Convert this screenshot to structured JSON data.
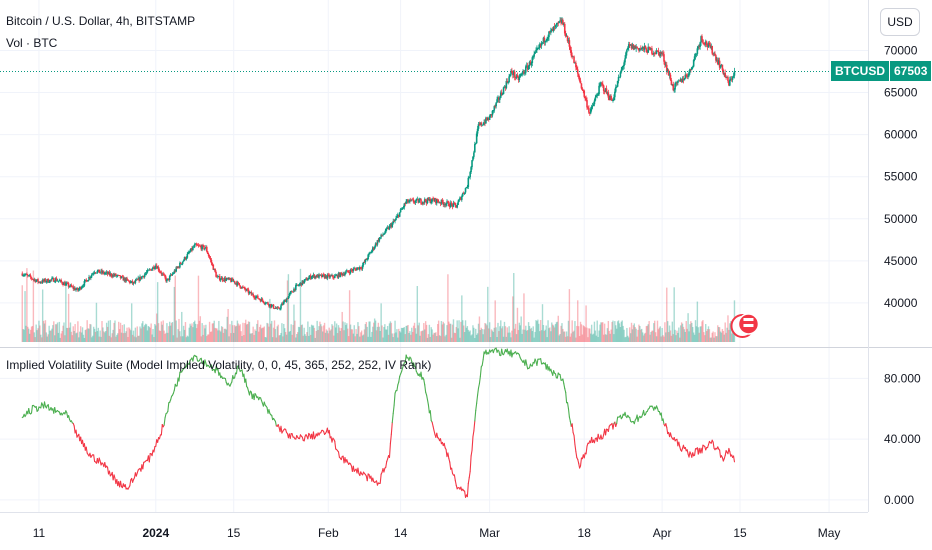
{
  "header": {
    "title": "Bitcoin / U.S. Dollar, 4h, BITSTAMP",
    "volume_label": "Vol · BTC",
    "currency_button": "USD"
  },
  "price_tag": {
    "symbol": "BTCUSD",
    "value": "67503"
  },
  "indicator": {
    "title": "Implied Volatility Suite (Model Implied Volatility, 0, 0, 45, 365, 252, 252, IV Rank)"
  },
  "colors": {
    "up": "#089981",
    "down": "#f23645",
    "iv_high": "#4caf50",
    "iv_low": "#f23645",
    "grid": "#f0f3fa"
  },
  "chart_data": [
    {
      "type": "candlestick",
      "title": "Bitcoin / U.S. Dollar, 4h, BITSTAMP",
      "ylim": [
        35000,
        76000
      ],
      "y_ticks": [
        40000,
        45000,
        50000,
        55000,
        60000,
        65000,
        70000
      ],
      "y_tick_labels": [
        "40000",
        "45000",
        "50000",
        "55000",
        "60000",
        "65000",
        "70000"
      ],
      "last_price": 67503,
      "price_anchors": [
        {
          "date": "2023-12-08",
          "close": 43500
        },
        {
          "date": "2023-12-11",
          "close": 42500
        },
        {
          "date": "2023-12-14",
          "close": 42800
        },
        {
          "date": "2023-12-18",
          "close": 41500
        },
        {
          "date": "2023-12-21",
          "close": 43800
        },
        {
          "date": "2023-12-25",
          "close": 43200
        },
        {
          "date": "2023-12-28",
          "close": 42300
        },
        {
          "date": "2024-01-01",
          "close": 44500
        },
        {
          "date": "2024-01-03",
          "close": 42600
        },
        {
          "date": "2024-01-08",
          "close": 46800
        },
        {
          "date": "2024-01-10",
          "close": 46500
        },
        {
          "date": "2024-01-12",
          "close": 43000
        },
        {
          "date": "2024-01-15",
          "close": 42600
        },
        {
          "date": "2024-01-18",
          "close": 41100
        },
        {
          "date": "2024-01-23",
          "close": 39200
        },
        {
          "date": "2024-01-26",
          "close": 41800
        },
        {
          "date": "2024-01-29",
          "close": 43200
        },
        {
          "date": "2024-02-02",
          "close": 43100
        },
        {
          "date": "2024-02-07",
          "close": 44300
        },
        {
          "date": "2024-02-10",
          "close": 47500
        },
        {
          "date": "2024-02-13",
          "close": 49800
        },
        {
          "date": "2024-02-15",
          "close": 52000
        },
        {
          "date": "2024-02-20",
          "close": 52200
        },
        {
          "date": "2024-02-24",
          "close": 51500
        },
        {
          "date": "2024-02-26",
          "close": 54000
        },
        {
          "date": "2024-02-28",
          "close": 61000
        },
        {
          "date": "2024-03-01",
          "close": 62000
        },
        {
          "date": "2024-03-05",
          "close": 67500
        },
        {
          "date": "2024-03-06",
          "close": 66500
        },
        {
          "date": "2024-03-08",
          "close": 68200
        },
        {
          "date": "2024-03-11",
          "close": 71500
        },
        {
          "date": "2024-03-14",
          "close": 73500
        },
        {
          "date": "2024-03-16",
          "close": 69000
        },
        {
          "date": "2024-03-19",
          "close": 62500
        },
        {
          "date": "2024-03-21",
          "close": 66000
        },
        {
          "date": "2024-03-23",
          "close": 64000
        },
        {
          "date": "2024-03-26",
          "close": 70500
        },
        {
          "date": "2024-03-30",
          "close": 70000
        },
        {
          "date": "2024-04-01",
          "close": 69600
        },
        {
          "date": "2024-04-03",
          "close": 65500
        },
        {
          "date": "2024-04-06",
          "close": 67500
        },
        {
          "date": "2024-04-08",
          "close": 71500
        },
        {
          "date": "2024-04-10",
          "close": 70000
        },
        {
          "date": "2024-04-12",
          "close": 67500
        },
        {
          "date": "2024-04-13",
          "close": 66000
        },
        {
          "date": "2024-04-14",
          "close": 67503
        }
      ]
    },
    {
      "type": "volume",
      "title": "Vol · BTC"
    },
    {
      "type": "line",
      "title": "Implied Volatility Suite (Model Implied Volatility, 0, 0, 45, 365, 252, 252, IV Rank)",
      "ylim": [
        -8,
        100
      ],
      "y_ticks": [
        0,
        40,
        80
      ],
      "y_tick_labels": [
        "0.000",
        "40.000",
        "80.000"
      ],
      "threshold": 50,
      "points": [
        {
          "date": "2023-12-08",
          "value": 55
        },
        {
          "date": "2023-12-10",
          "value": 60
        },
        {
          "date": "2023-12-12",
          "value": 62
        },
        {
          "date": "2023-12-14",
          "value": 58
        },
        {
          "date": "2023-12-16",
          "value": 56
        },
        {
          "date": "2023-12-18",
          "value": 42
        },
        {
          "date": "2023-12-20",
          "value": 30
        },
        {
          "date": "2023-12-23",
          "value": 22
        },
        {
          "date": "2023-12-25",
          "value": 12
        },
        {
          "date": "2023-12-27",
          "value": 8
        },
        {
          "date": "2023-12-29",
          "value": 20
        },
        {
          "date": "2023-12-31",
          "value": 28
        },
        {
          "date": "2024-01-02",
          "value": 45
        },
        {
          "date": "2024-01-04",
          "value": 70
        },
        {
          "date": "2024-01-06",
          "value": 88
        },
        {
          "date": "2024-01-08",
          "value": 95
        },
        {
          "date": "2024-01-10",
          "value": 90
        },
        {
          "date": "2024-01-12",
          "value": 85
        },
        {
          "date": "2024-01-14",
          "value": 75
        },
        {
          "date": "2024-01-16",
          "value": 88
        },
        {
          "date": "2024-01-18",
          "value": 70
        },
        {
          "date": "2024-01-20",
          "value": 65
        },
        {
          "date": "2024-01-23",
          "value": 48
        },
        {
          "date": "2024-01-26",
          "value": 40
        },
        {
          "date": "2024-01-29",
          "value": 42
        },
        {
          "date": "2024-02-01",
          "value": 45
        },
        {
          "date": "2024-02-03",
          "value": 30
        },
        {
          "date": "2024-02-05",
          "value": 22
        },
        {
          "date": "2024-02-08",
          "value": 15
        },
        {
          "date": "2024-02-10",
          "value": 10
        },
        {
          "date": "2024-02-12",
          "value": 30
        },
        {
          "date": "2024-02-13",
          "value": 70
        },
        {
          "date": "2024-02-15",
          "value": 95
        },
        {
          "date": "2024-02-18",
          "value": 80
        },
        {
          "date": "2024-02-20",
          "value": 45
        },
        {
          "date": "2024-02-22",
          "value": 35
        },
        {
          "date": "2024-02-24",
          "value": 10
        },
        {
          "date": "2024-02-26",
          "value": 2
        },
        {
          "date": "2024-02-27",
          "value": 40
        },
        {
          "date": "2024-02-28",
          "value": 75
        },
        {
          "date": "2024-02-29",
          "value": 98
        },
        {
          "date": "2024-03-04",
          "value": 97
        },
        {
          "date": "2024-03-06",
          "value": 95
        },
        {
          "date": "2024-03-08",
          "value": 88
        },
        {
          "date": "2024-03-10",
          "value": 92
        },
        {
          "date": "2024-03-12",
          "value": 85
        },
        {
          "date": "2024-03-14",
          "value": 80
        },
        {
          "date": "2024-03-16",
          "value": 45
        },
        {
          "date": "2024-03-17",
          "value": 22
        },
        {
          "date": "2024-03-19",
          "value": 38
        },
        {
          "date": "2024-03-21",
          "value": 42
        },
        {
          "date": "2024-03-23",
          "value": 48
        },
        {
          "date": "2024-03-25",
          "value": 56
        },
        {
          "date": "2024-03-27",
          "value": 52
        },
        {
          "date": "2024-03-29",
          "value": 58
        },
        {
          "date": "2024-03-31",
          "value": 62
        },
        {
          "date": "2024-04-02",
          "value": 45
        },
        {
          "date": "2024-04-04",
          "value": 36
        },
        {
          "date": "2024-04-06",
          "value": 30
        },
        {
          "date": "2024-04-08",
          "value": 33
        },
        {
          "date": "2024-04-10",
          "value": 38
        },
        {
          "date": "2024-04-12",
          "value": 28
        },
        {
          "date": "2024-04-13",
          "value": 32
        },
        {
          "date": "2024-04-14",
          "value": 27
        }
      ]
    }
  ],
  "x_axis": {
    "ticks": [
      {
        "label": "11",
        "date": "2023-12-11"
      },
      {
        "label": "2024",
        "date": "2024-01-01"
      },
      {
        "label": "15",
        "date": "2024-01-15"
      },
      {
        "label": "Feb",
        "date": "2024-02-01"
      },
      {
        "label": "14",
        "date": "2024-02-14"
      },
      {
        "label": "Mar",
        "date": "2024-03-01"
      },
      {
        "label": "18",
        "date": "2024-03-18"
      },
      {
        "label": "Apr",
        "date": "2024-04-01"
      },
      {
        "label": "15",
        "date": "2024-04-15"
      },
      {
        "label": "May",
        "date": "2024-05-01"
      }
    ]
  }
}
